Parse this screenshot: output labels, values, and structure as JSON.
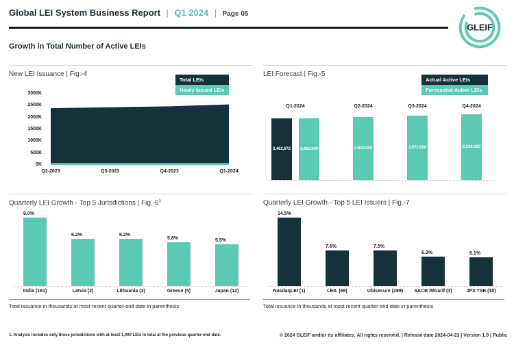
{
  "colors": {
    "dark": "#15313A",
    "teal": "#5CC9B3",
    "accent": "#4FC4AE"
  },
  "header": {
    "title": "Global LEI System Business Report",
    "sep": "|",
    "quarter": "Q1 2024",
    "page": "Page 05",
    "logo": "GLEIF",
    "section_title": "Growth in Total Number of Active LEIs"
  },
  "chart_data": [
    {
      "id": "fig-4",
      "type": "area",
      "title": "New LEI Issuance | Fig.-4",
      "x": [
        "Q2-2023",
        "Q3-2023",
        "Q4-2023",
        "Q1-2024"
      ],
      "series": [
        {
          "name": "Total LEIs",
          "color": "#15313A",
          "values": [
            2390000,
            2430000,
            2470000,
            2550000
          ]
        },
        {
          "name": "Newly Issued LEIs",
          "color": "#5CC9B3",
          "values": [
            80000,
            80000,
            80000,
            80000
          ]
        }
      ],
      "y_ticks": [
        "3000K",
        "2500K",
        "2000K",
        "1500K",
        "1000K",
        "500K",
        "0K"
      ],
      "ylim": [
        0,
        3000000
      ],
      "grid": false,
      "legend_position": "top-right"
    },
    {
      "id": "fig-5",
      "type": "bar",
      "title": "LEI Forecast | Fig.-5",
      "categories": [
        "Q1-2024",
        "Q2-2024",
        "Q3-2024",
        "Q4-2024"
      ],
      "series": [
        {
          "name": "Actual Active LEIs",
          "color": "#15313A",
          "values": [
            2462672
          ]
        },
        {
          "name": "Forecasted Active LEIs",
          "color": "#5CC9B3",
          "values": [
            2462000,
            2519000,
            2572000,
            2638000
          ]
        }
      ],
      "bar_labels": [
        "2,462,672",
        "2,462,000",
        "2,519,000",
        "2,572,000",
        "2,638,000"
      ],
      "legend_position": "top-right"
    },
    {
      "id": "fig-6",
      "type": "bar",
      "title": "Quarterly LEI Growth - Top 5 Jurisdictions | Fig.-6",
      "title_sup": "1",
      "categories": [
        "India (161)",
        "Latvia (2)",
        "Lithuania (3)",
        "Greece (5)",
        "Japan (12)"
      ],
      "values": [
        9.0,
        6.2,
        6.2,
        5.8,
        5.5
      ],
      "labels": [
        "9.0%",
        "6.2%",
        "6.2%",
        "5.8%",
        "5.5%"
      ],
      "bar_color": "#5CC9B3",
      "note": "Total issuance in thousands at most recent quarter-end date in parenthesis"
    },
    {
      "id": "fig-7",
      "type": "bar",
      "title": "Quarterly LEI Growth - Top 5 LEI Issuers | Fig.-7",
      "categories": [
        "NasdaqLEI (1)",
        "LEIL (69)",
        "Ubisecure (289)",
        "SACB /Moarif (3)",
        "JPX TSE (10)"
      ],
      "values": [
        14.5,
        7.6,
        7.5,
        6.3,
        6.1
      ],
      "labels": [
        "14.5%",
        "7.6%",
        "7.5%",
        "6.3%",
        "6.1%"
      ],
      "bar_color": "#15313A",
      "note": "Total issuance in thousands at most recent quarter-end date in parenthesis"
    }
  ],
  "footer": {
    "footnote": "1. Analysis includes only those jurisdictions with at least 1,000 LEIs in total at the previous quarter-end date.",
    "copyright": "© 2024 GLEIF and/or its affiliates. All rights reserved. | Release date 2024-04-23 | Version 1.0 | Public"
  }
}
